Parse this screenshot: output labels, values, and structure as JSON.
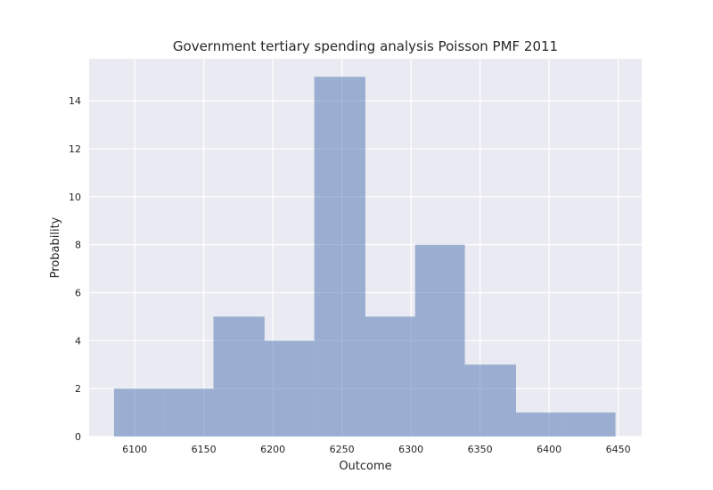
{
  "chart_data": {
    "type": "bar",
    "title": "Government tertiary spending analysis Poisson PMF 2011",
    "xlabel": "Outcome",
    "ylabel": "Probability",
    "xlim": [
      6067,
      6467
    ],
    "ylim": [
      0,
      15.75
    ],
    "xticks": [
      6100,
      6150,
      6200,
      6250,
      6300,
      6350,
      6400,
      6450
    ],
    "yticks": [
      0,
      2,
      4,
      6,
      8,
      10,
      12,
      14
    ],
    "grid": true,
    "background_color": "#eaeaf2",
    "bar_color": "#4c72b0",
    "bins": [
      {
        "x0": 6085,
        "x1": 6121,
        "value": 2
      },
      {
        "x0": 6121,
        "x1": 6157,
        "value": 2
      },
      {
        "x0": 6157,
        "x1": 6194,
        "value": 5
      },
      {
        "x0": 6194,
        "x1": 6230,
        "value": 4
      },
      {
        "x0": 6230,
        "x1": 6267,
        "value": 15
      },
      {
        "x0": 6267,
        "x1": 6303,
        "value": 5
      },
      {
        "x0": 6303,
        "x1": 6339,
        "value": 8
      },
      {
        "x0": 6339,
        "x1": 6376,
        "value": 3
      },
      {
        "x0": 6376,
        "x1": 6412,
        "value": 1
      },
      {
        "x0": 6412,
        "x1": 6448,
        "value": 1
      }
    ]
  }
}
